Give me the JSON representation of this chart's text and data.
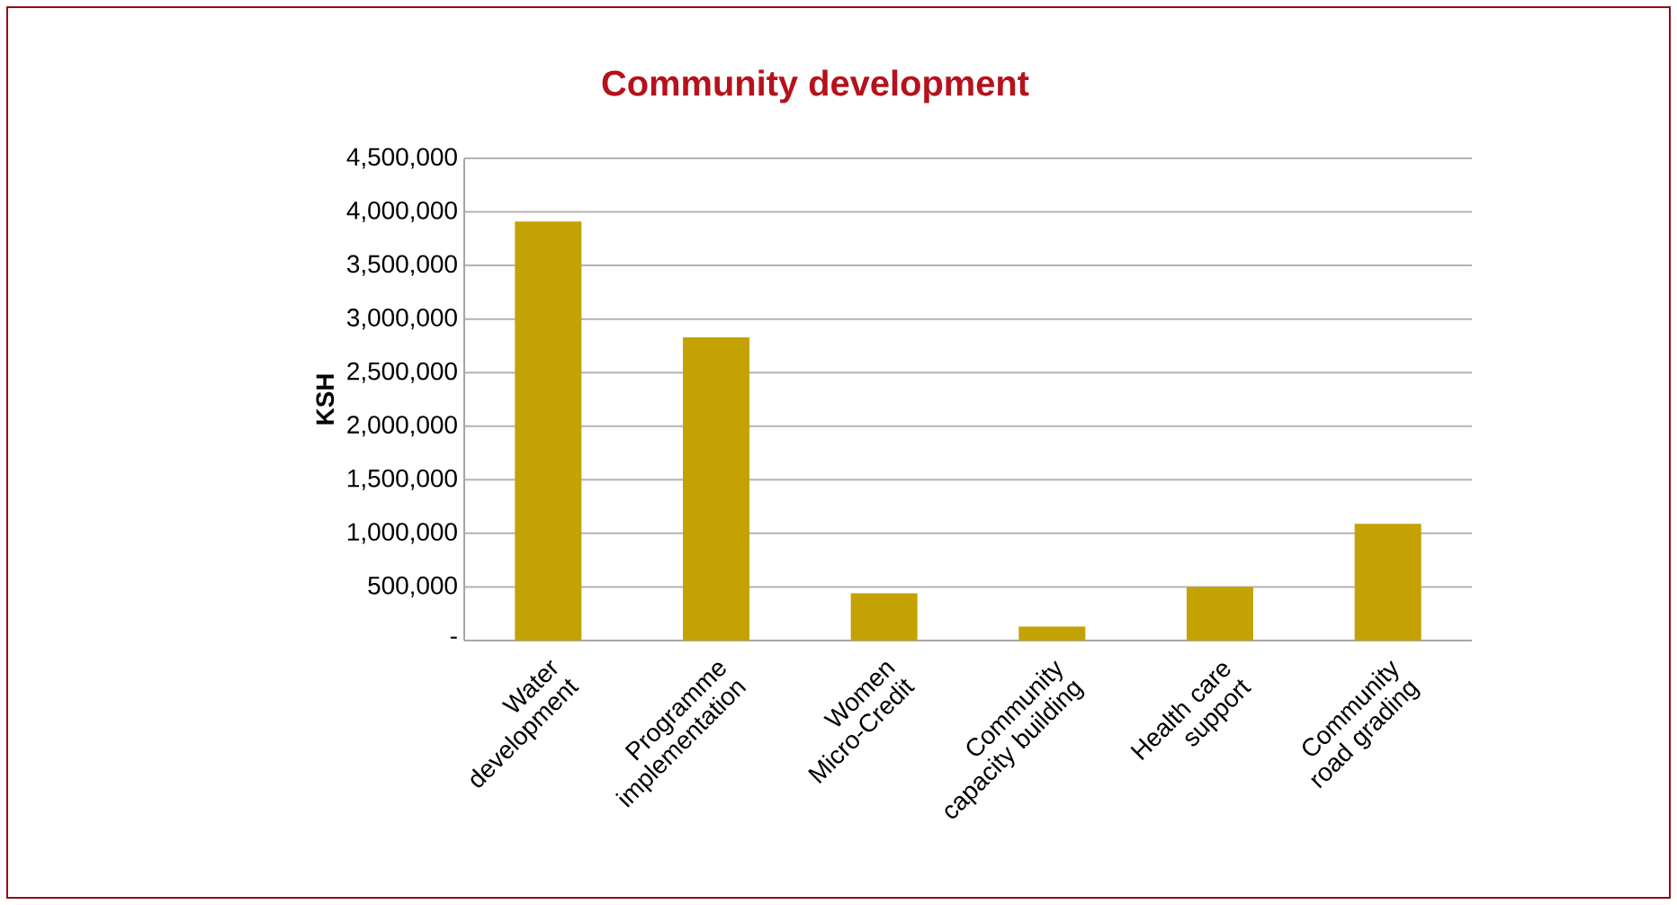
{
  "chart_data": {
    "type": "bar",
    "title": "Community development",
    "ylabel": "KSH",
    "categories": [
      "Water development",
      "Programme implementation",
      "Women Micro-Credit",
      "Community capacity building",
      "Health care support",
      "Community road grading"
    ],
    "values": [
      3910000,
      2830000,
      440000,
      130000,
      500000,
      1090000
    ],
    "color": "#c4a204",
    "ylim": [
      0,
      4500000
    ],
    "yticks": [
      {
        "value": 0,
        "label": "-"
      },
      {
        "value": 500000,
        "label": "500,000"
      },
      {
        "value": 1000000,
        "label": "1,000,000"
      },
      {
        "value": 1500000,
        "label": "1,500,000"
      },
      {
        "value": 2000000,
        "label": "2,000,000"
      },
      {
        "value": 2500000,
        "label": "2,500,000"
      },
      {
        "value": 3000000,
        "label": "3,000,000"
      },
      {
        "value": 3500000,
        "label": "3,500,000"
      },
      {
        "value": 4000000,
        "label": "4,000,000"
      },
      {
        "value": 4500000,
        "label": "4,500,000"
      }
    ],
    "grid": "y"
  }
}
